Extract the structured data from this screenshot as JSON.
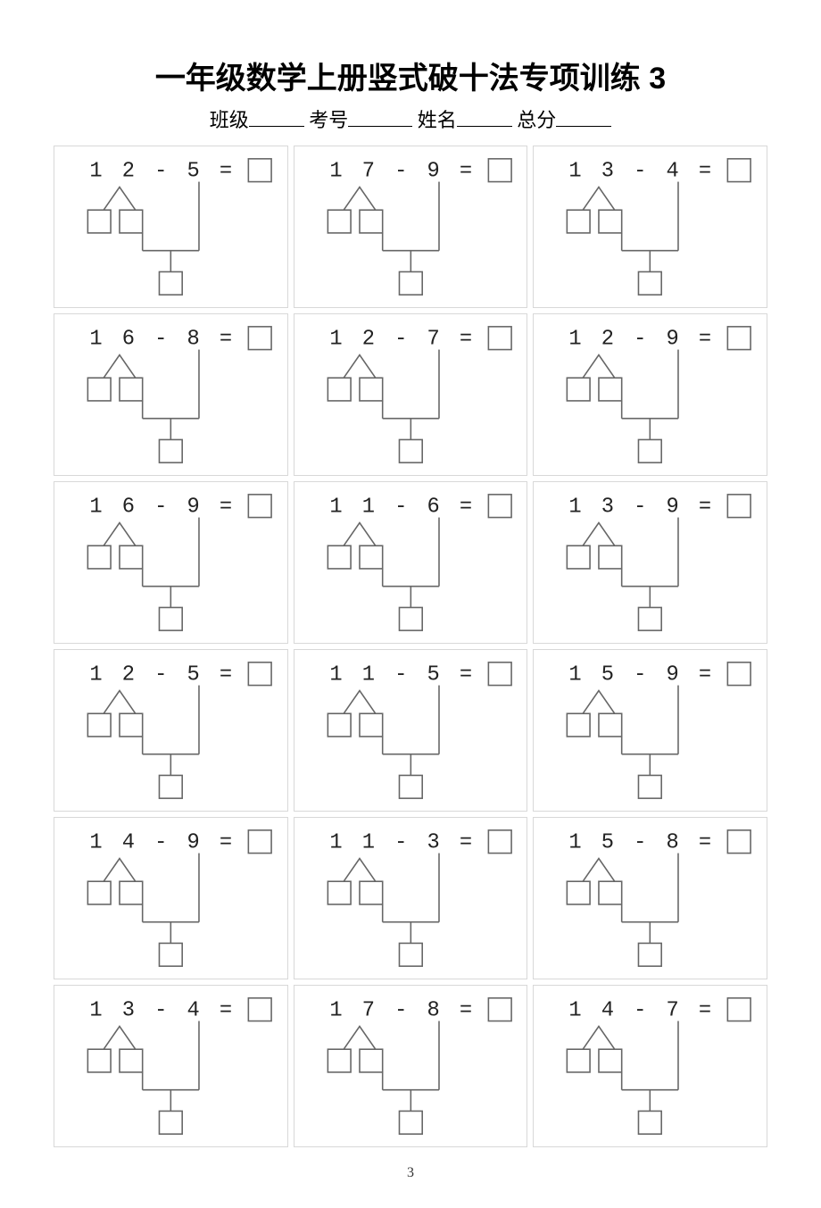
{
  "title": "一年级数学上册竖式破十法专项训练 3",
  "info": {
    "class_label": "班级",
    "exam_no_label": "考号",
    "name_label": "姓名",
    "score_label": "总分"
  },
  "page_number": "3",
  "style": {
    "cell_border_color": "#d8d8d8",
    "box_stroke_color": "#666666",
    "line_stroke_color": "#666666",
    "text_color": "#222222",
    "background": "#ffffff",
    "title_fontsize": 34,
    "eq_fontsize": 24,
    "box_size": 26
  },
  "problems": [
    {
      "a": "1 2",
      "b": "5"
    },
    {
      "a": "1 7",
      "b": "9"
    },
    {
      "a": "1 3",
      "b": "4"
    },
    {
      "a": "1 6",
      "b": "8"
    },
    {
      "a": "1 2",
      "b": "7"
    },
    {
      "a": "1 2",
      "b": "9"
    },
    {
      "a": "1 6",
      "b": "9"
    },
    {
      "a": "1 1",
      "b": "6"
    },
    {
      "a": "1 3",
      "b": "9"
    },
    {
      "a": "1 2",
      "b": "5"
    },
    {
      "a": "1 1",
      "b": "5"
    },
    {
      "a": "1 5",
      "b": "9"
    },
    {
      "a": "1 4",
      "b": "9"
    },
    {
      "a": "1 1",
      "b": "3"
    },
    {
      "a": "1 5",
      "b": "8"
    },
    {
      "a": "1 3",
      "b": "4"
    },
    {
      "a": "1 7",
      "b": "8"
    },
    {
      "a": "1 4",
      "b": "7"
    }
  ]
}
